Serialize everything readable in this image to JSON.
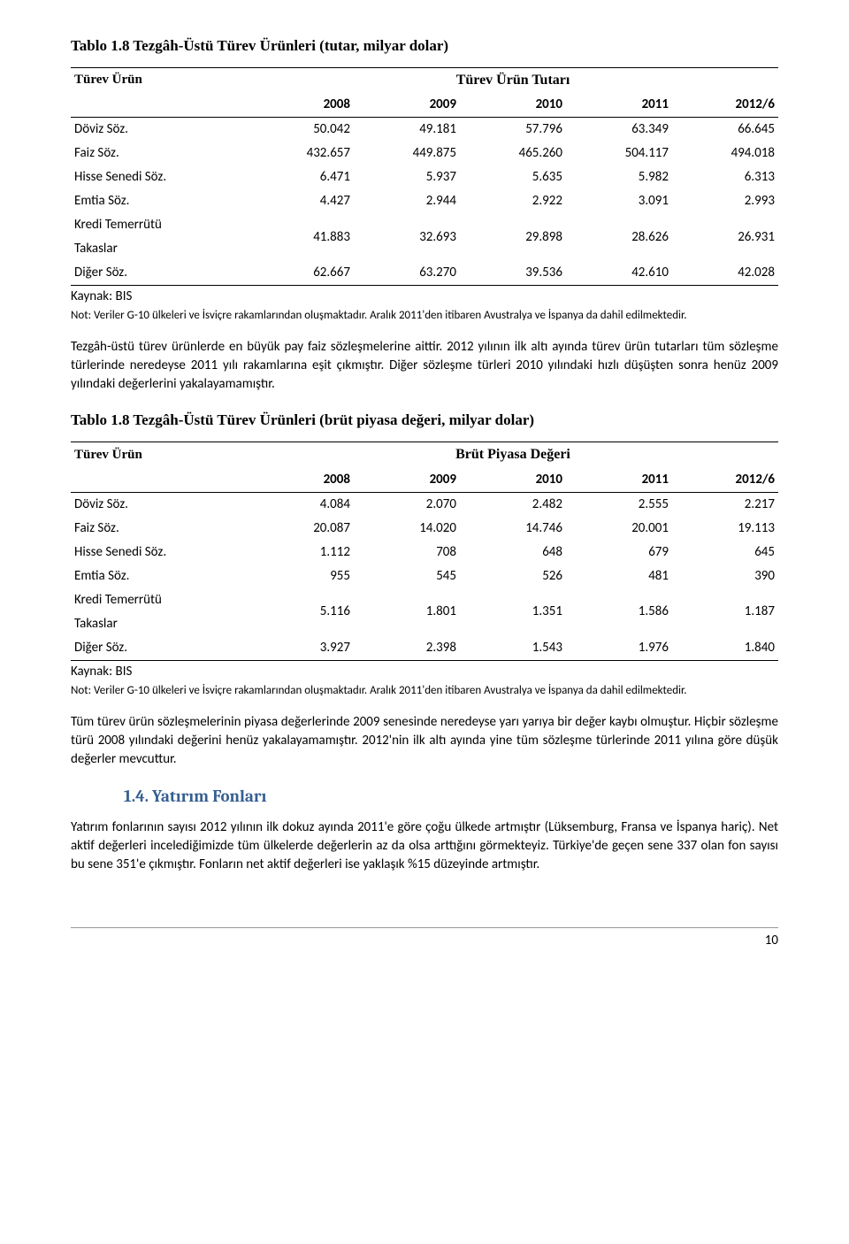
{
  "table1": {
    "title": "Tablo 1.8 Tezgâh-Üstü Türev Ürünleri (tutar, milyar dolar)",
    "col_label": "Türev Ürün",
    "span_label": "Türev Ürün Tutarı",
    "years": [
      "2008",
      "2009",
      "2010",
      "2011",
      "2012/6"
    ],
    "rows": [
      {
        "label": "Döviz Söz.",
        "vals": [
          "50.042",
          "49.181",
          "57.796",
          "63.349",
          "66.645"
        ]
      },
      {
        "label": "Faiz Söz.",
        "vals": [
          "432.657",
          "449.875",
          "465.260",
          "504.117",
          "494.018"
        ]
      },
      {
        "label": "Hisse Senedi Söz.",
        "vals": [
          "6.471",
          "5.937",
          "5.635",
          "5.982",
          "6.313"
        ]
      },
      {
        "label": "Emtia Söz.",
        "vals": [
          "4.427",
          "2.944",
          "2.922",
          "3.091",
          "2.993"
        ]
      },
      {
        "label": "Kredi Temerrütü Takaslar",
        "label1": "Kredi Temerrütü",
        "label2": "Takaslar",
        "vals": [
          "41.883",
          "32.693",
          "29.898",
          "28.626",
          "26.931"
        ]
      },
      {
        "label": "Diğer Söz.",
        "vals": [
          "62.667",
          "63.270",
          "39.536",
          "42.610",
          "42.028"
        ]
      }
    ],
    "source": "Kaynak: BIS",
    "note": "Not: Veriler G-10 ülkeleri ve İsviçre rakamlarından oluşmaktadır. Aralık 2011'den itibaren Avustralya ve İspanya da dahil edilmektedir."
  },
  "para1": "Tezgâh-üstü türev ürünlerde en büyük pay faiz sözleşmelerine aittir. 2012 yılının ilk altı ayında türev ürün tutarları tüm sözleşme türlerinde neredeyse 2011 yılı rakamlarına eşit çıkmıştır. Diğer sözleşme türleri 2010 yılındaki hızlı düşüşten sonra henüz 2009 yılındaki değerlerini yakalayamamıştır.",
  "table2": {
    "title": "Tablo 1.8 Tezgâh-Üstü Türev Ürünleri (brüt piyasa değeri, milyar dolar)",
    "col_label": "Türev Ürün",
    "span_label": "Brüt Piyasa Değeri",
    "years": [
      "2008",
      "2009",
      "2010",
      "2011",
      "2012/6"
    ],
    "rows": [
      {
        "label": "Döviz Söz.",
        "vals": [
          "4.084",
          "2.070",
          "2.482",
          "2.555",
          "2.217"
        ]
      },
      {
        "label": "Faiz Söz.",
        "vals": [
          "20.087",
          "14.020",
          "14.746",
          "20.001",
          "19.113"
        ]
      },
      {
        "label": "Hisse Senedi Söz.",
        "vals": [
          "1.112",
          "708",
          "648",
          "679",
          "645"
        ]
      },
      {
        "label": "Emtia Söz.",
        "vals": [
          "955",
          "545",
          "526",
          "481",
          "390"
        ]
      },
      {
        "label": "Kredi Temerrütü Takaslar",
        "label1": "Kredi Temerrütü",
        "label2": "Takaslar",
        "vals": [
          "5.116",
          "1.801",
          "1.351",
          "1.586",
          "1.187"
        ]
      },
      {
        "label": "Diğer Söz.",
        "vals": [
          "3.927",
          "2.398",
          "1.543",
          "1.976",
          "1.840"
        ]
      }
    ],
    "source": "Kaynak: BIS",
    "note": "Not: Veriler G-10 ülkeleri ve İsviçre rakamlarından oluşmaktadır. Aralık 2011'den itibaren Avustralya ve İspanya da dahil edilmektedir."
  },
  "para2": "Tüm türev ürün sözleşmelerinin piyasa değerlerinde 2009 senesinde neredeyse yarı yarıya bir değer kaybı olmuştur. Hiçbir sözleşme türü 2008 yılındaki değerini henüz yakalayamamıştır. 2012'nin ilk altı ayında yine tüm sözleşme türlerinde 2011 yılına göre düşük değerler mevcuttur.",
  "section_head": "1.4.   Yatırım Fonları",
  "para3": "Yatırım fonlarının sayısı 2012 yılının ilk dokuz ayında 2011'e göre çoğu ülkede artmıştır (Lüksemburg, Fransa ve İspanya hariç). Net aktif değerleri incelediğimizde tüm ülkelerde değerlerin az da olsa arttığını görmekteyiz. Türkiye'de geçen sene 337 olan fon sayısı bu sene 351'e çıkmıştır. Fonların net aktif değerleri ise yaklaşık %15 düzeyinde artmıştır.",
  "page_number": "10"
}
